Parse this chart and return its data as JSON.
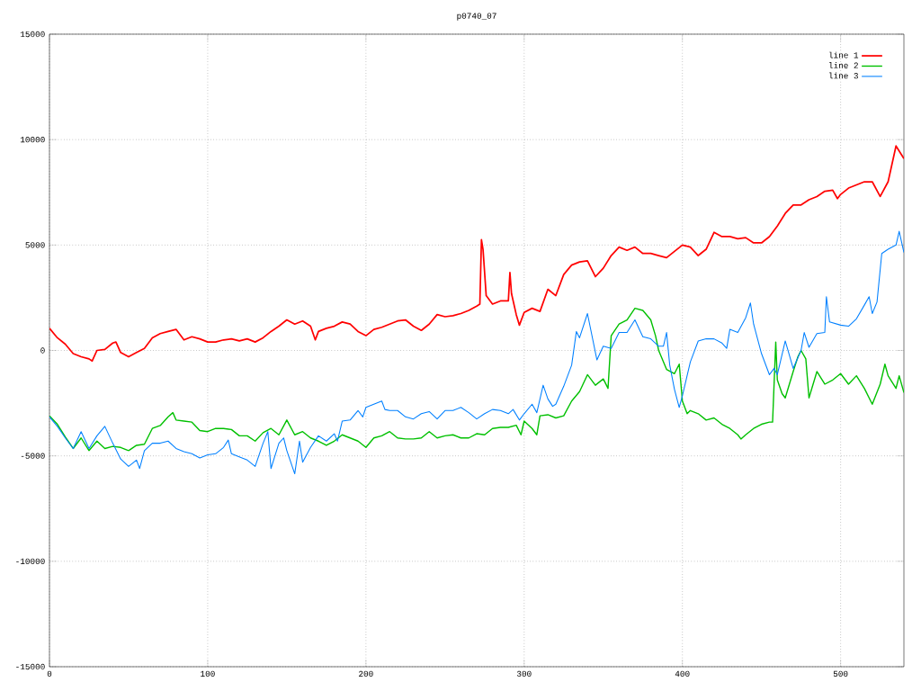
{
  "chart_data": {
    "type": "line",
    "title": "p0740_07",
    "xlim": [
      0,
      540
    ],
    "ylim": [
      -15000,
      15000
    ],
    "xticks": [
      0,
      100,
      200,
      300,
      400,
      500
    ],
    "yticks": [
      -15000,
      -10000,
      -5000,
      0,
      5000,
      10000,
      15000
    ],
    "grid": true,
    "legend": "top right",
    "line_style": "solid",
    "marker": "none",
    "series": [
      {
        "name": "line 1",
        "color": "#ff0000",
        "x": [
          0,
          5,
          10,
          15,
          20,
          25,
          27,
          30,
          35,
          40,
          42,
          45,
          50,
          55,
          60,
          65,
          70,
          75,
          80,
          85,
          90,
          95,
          100,
          105,
          110,
          115,
          120,
          125,
          130,
          135,
          140,
          145,
          150,
          155,
          160,
          165,
          168,
          170,
          175,
          180,
          185,
          190,
          195,
          200,
          205,
          210,
          215,
          220,
          225,
          230,
          235,
          240,
          245,
          250,
          255,
          260,
          265,
          270,
          272,
          273,
          274,
          276,
          280,
          285,
          290,
          291,
          292,
          295,
          297,
          300,
          305,
          310,
          315,
          320,
          325,
          330,
          335,
          340,
          345,
          350,
          355,
          360,
          365,
          370,
          375,
          380,
          385,
          390,
          395,
          400,
          405,
          410,
          415,
          420,
          425,
          430,
          435,
          440,
          445,
          450,
          455,
          460,
          465,
          470,
          475,
          480,
          485,
          490,
          495,
          498,
          500,
          505,
          510,
          515,
          520,
          525,
          530,
          535,
          540
        ],
        "values": [
          1050,
          600,
          300,
          -150,
          -300,
          -400,
          -500,
          0,
          50,
          350,
          400,
          -100,
          -300,
          -100,
          100,
          600,
          800,
          900,
          1000,
          500,
          650,
          550,
          400,
          400,
          500,
          550,
          450,
          550,
          400,
          600,
          900,
          1150,
          1450,
          1250,
          1400,
          1150,
          500,
          900,
          1050,
          1150,
          1350,
          1250,
          900,
          700,
          1000,
          1100,
          1250,
          1400,
          1450,
          1150,
          950,
          1250,
          1700,
          1600,
          1650,
          1750,
          1900,
          2100,
          2200,
          5250,
          4800,
          2600,
          2200,
          2350,
          2350,
          3700,
          2700,
          1700,
          1200,
          1800,
          2000,
          1850,
          2900,
          2600,
          3600,
          4050,
          4200,
          4250,
          3500,
          3900,
          4500,
          4900,
          4750,
          4900,
          4600,
          4600,
          4500,
          4400,
          4700,
          5000,
          4900,
          4500,
          4800,
          5600,
          5400,
          5400,
          5300,
          5350,
          5100,
          5100,
          5400,
          5900,
          6500,
          6900,
          6900,
          7150,
          7300,
          7550,
          7600,
          7200,
          7400,
          7700,
          7850,
          8000,
          8000,
          7300,
          8000,
          9700,
          9100
        ]
      },
      {
        "name": "line 2",
        "color": "#00c000",
        "x": [
          0,
          5,
          10,
          15,
          20,
          25,
          30,
          35,
          40,
          45,
          50,
          55,
          60,
          65,
          70,
          75,
          78,
          80,
          85,
          90,
          95,
          100,
          105,
          110,
          115,
          120,
          125,
          130,
          135,
          140,
          145,
          150,
          155,
          160,
          165,
          170,
          175,
          180,
          185,
          190,
          195,
          200,
          205,
          210,
          215,
          220,
          225,
          230,
          235,
          240,
          245,
          250,
          255,
          260,
          265,
          270,
          275,
          280,
          285,
          290,
          295,
          298,
          300,
          305,
          308,
          310,
          315,
          320,
          325,
          330,
          335,
          340,
          345,
          350,
          352,
          353,
          355,
          360,
          365,
          370,
          375,
          380,
          383,
          385,
          390,
          395,
          398,
          400,
          403,
          405,
          410,
          415,
          420,
          425,
          430,
          435,
          437,
          440,
          445,
          450,
          455,
          457,
          459,
          460,
          463,
          465,
          470,
          473,
          475,
          478,
          480,
          485,
          490,
          495,
          500,
          505,
          510,
          515,
          520,
          525,
          528,
          530,
          535,
          537,
          540
        ],
        "values": [
          -3100,
          -3500,
          -4100,
          -4650,
          -4150,
          -4750,
          -4300,
          -4650,
          -4550,
          -4600,
          -4750,
          -4500,
          -4450,
          -3700,
          -3560,
          -3150,
          -2950,
          -3300,
          -3350,
          -3400,
          -3800,
          -3850,
          -3700,
          -3700,
          -3750,
          -4050,
          -4050,
          -4300,
          -3900,
          -3700,
          -4000,
          -3300,
          -4000,
          -3850,
          -4150,
          -4300,
          -4500,
          -4300,
          -4000,
          -4150,
          -4300,
          -4600,
          -4150,
          -4050,
          -3850,
          -4150,
          -4200,
          -4200,
          -4150,
          -3850,
          -4150,
          -4050,
          -4000,
          -4150,
          -4150,
          -3950,
          -4000,
          -3700,
          -3650,
          -3650,
          -3550,
          -4000,
          -3350,
          -3700,
          -4000,
          -3100,
          -3050,
          -3200,
          -3100,
          -2400,
          -1950,
          -1150,
          -1650,
          -1350,
          -1650,
          -1800,
          700,
          1250,
          1450,
          2000,
          1900,
          1450,
          700,
          0,
          -900,
          -1100,
          -650,
          -2400,
          -3000,
          -2850,
          -3000,
          -3300,
          -3200,
          -3500,
          -3700,
          -4000,
          -4200,
          -4000,
          -3700,
          -3500,
          -3400,
          -3400,
          400,
          -1400,
          -2050,
          -2250,
          -1000,
          -300,
          0,
          -400,
          -2250,
          -1000,
          -1600,
          -1400,
          -1100,
          -1600,
          -1200,
          -1800,
          -2550,
          -1600,
          -650,
          -1200,
          -1800,
          -1200,
          -2000
        ]
      },
      {
        "name": "line 3",
        "color": "#0080ff",
        "x": [
          0,
          5,
          10,
          15,
          20,
          25,
          30,
          35,
          40,
          45,
          50,
          55,
          57,
          60,
          65,
          70,
          75,
          80,
          85,
          90,
          95,
          100,
          105,
          110,
          113,
          115,
          120,
          125,
          130,
          135,
          138,
          140,
          145,
          148,
          150,
          155,
          158,
          160,
          165,
          170,
          175,
          180,
          182,
          185,
          190,
          195,
          198,
          200,
          205,
          210,
          212,
          215,
          220,
          225,
          230,
          235,
          240,
          245,
          250,
          255,
          260,
          265,
          270,
          275,
          280,
          285,
          290,
          293,
          297,
          300,
          305,
          308,
          312,
          315,
          318,
          320,
          325,
          330,
          333,
          335,
          340,
          346,
          350,
          355,
          360,
          365,
          370,
          375,
          380,
          385,
          388,
          390,
          392,
          395,
          398,
          400,
          405,
          410,
          415,
          420,
          425,
          428,
          430,
          435,
          440,
          443,
          445,
          450,
          455,
          458,
          460,
          465,
          470,
          475,
          477,
          480,
          485,
          490,
          491,
          493,
          500,
          505,
          510,
          515,
          518,
          520,
          523,
          526,
          530,
          535,
          537,
          540
        ],
        "values": [
          -3150,
          -3600,
          -4150,
          -4650,
          -3850,
          -4650,
          -4050,
          -3600,
          -4400,
          -5150,
          -5500,
          -5200,
          -5600,
          -4750,
          -4400,
          -4400,
          -4300,
          -4650,
          -4800,
          -4900,
          -5100,
          -4950,
          -4900,
          -4600,
          -4250,
          -4900,
          -5050,
          -5200,
          -5500,
          -4400,
          -3850,
          -5600,
          -4400,
          -4150,
          -4750,
          -5850,
          -4300,
          -5300,
          -4600,
          -4050,
          -4300,
          -3950,
          -4300,
          -3350,
          -3300,
          -2850,
          -3150,
          -2700,
          -2550,
          -2400,
          -2800,
          -2850,
          -2850,
          -3150,
          -3250,
          -3000,
          -2900,
          -3250,
          -2850,
          -2850,
          -2700,
          -2950,
          -3250,
          -3000,
          -2800,
          -2850,
          -3000,
          -2800,
          -3300,
          -3000,
          -2550,
          -2950,
          -1650,
          -2300,
          -2650,
          -2550,
          -1700,
          -700,
          900,
          600,
          1750,
          -450,
          200,
          100,
          850,
          850,
          1450,
          650,
          550,
          200,
          200,
          850,
          -700,
          -1850,
          -2700,
          -2150,
          -550,
          450,
          550,
          550,
          350,
          100,
          1000,
          850,
          1550,
          2250,
          1250,
          -150,
          -1150,
          -850,
          -1150,
          450,
          -850,
          0,
          850,
          150,
          800,
          850,
          2550,
          1350,
          1200,
          1150,
          1500,
          2150,
          2550,
          1750,
          2300,
          4600,
          4800,
          5000,
          5650,
          4650
        ]
      }
    ]
  }
}
